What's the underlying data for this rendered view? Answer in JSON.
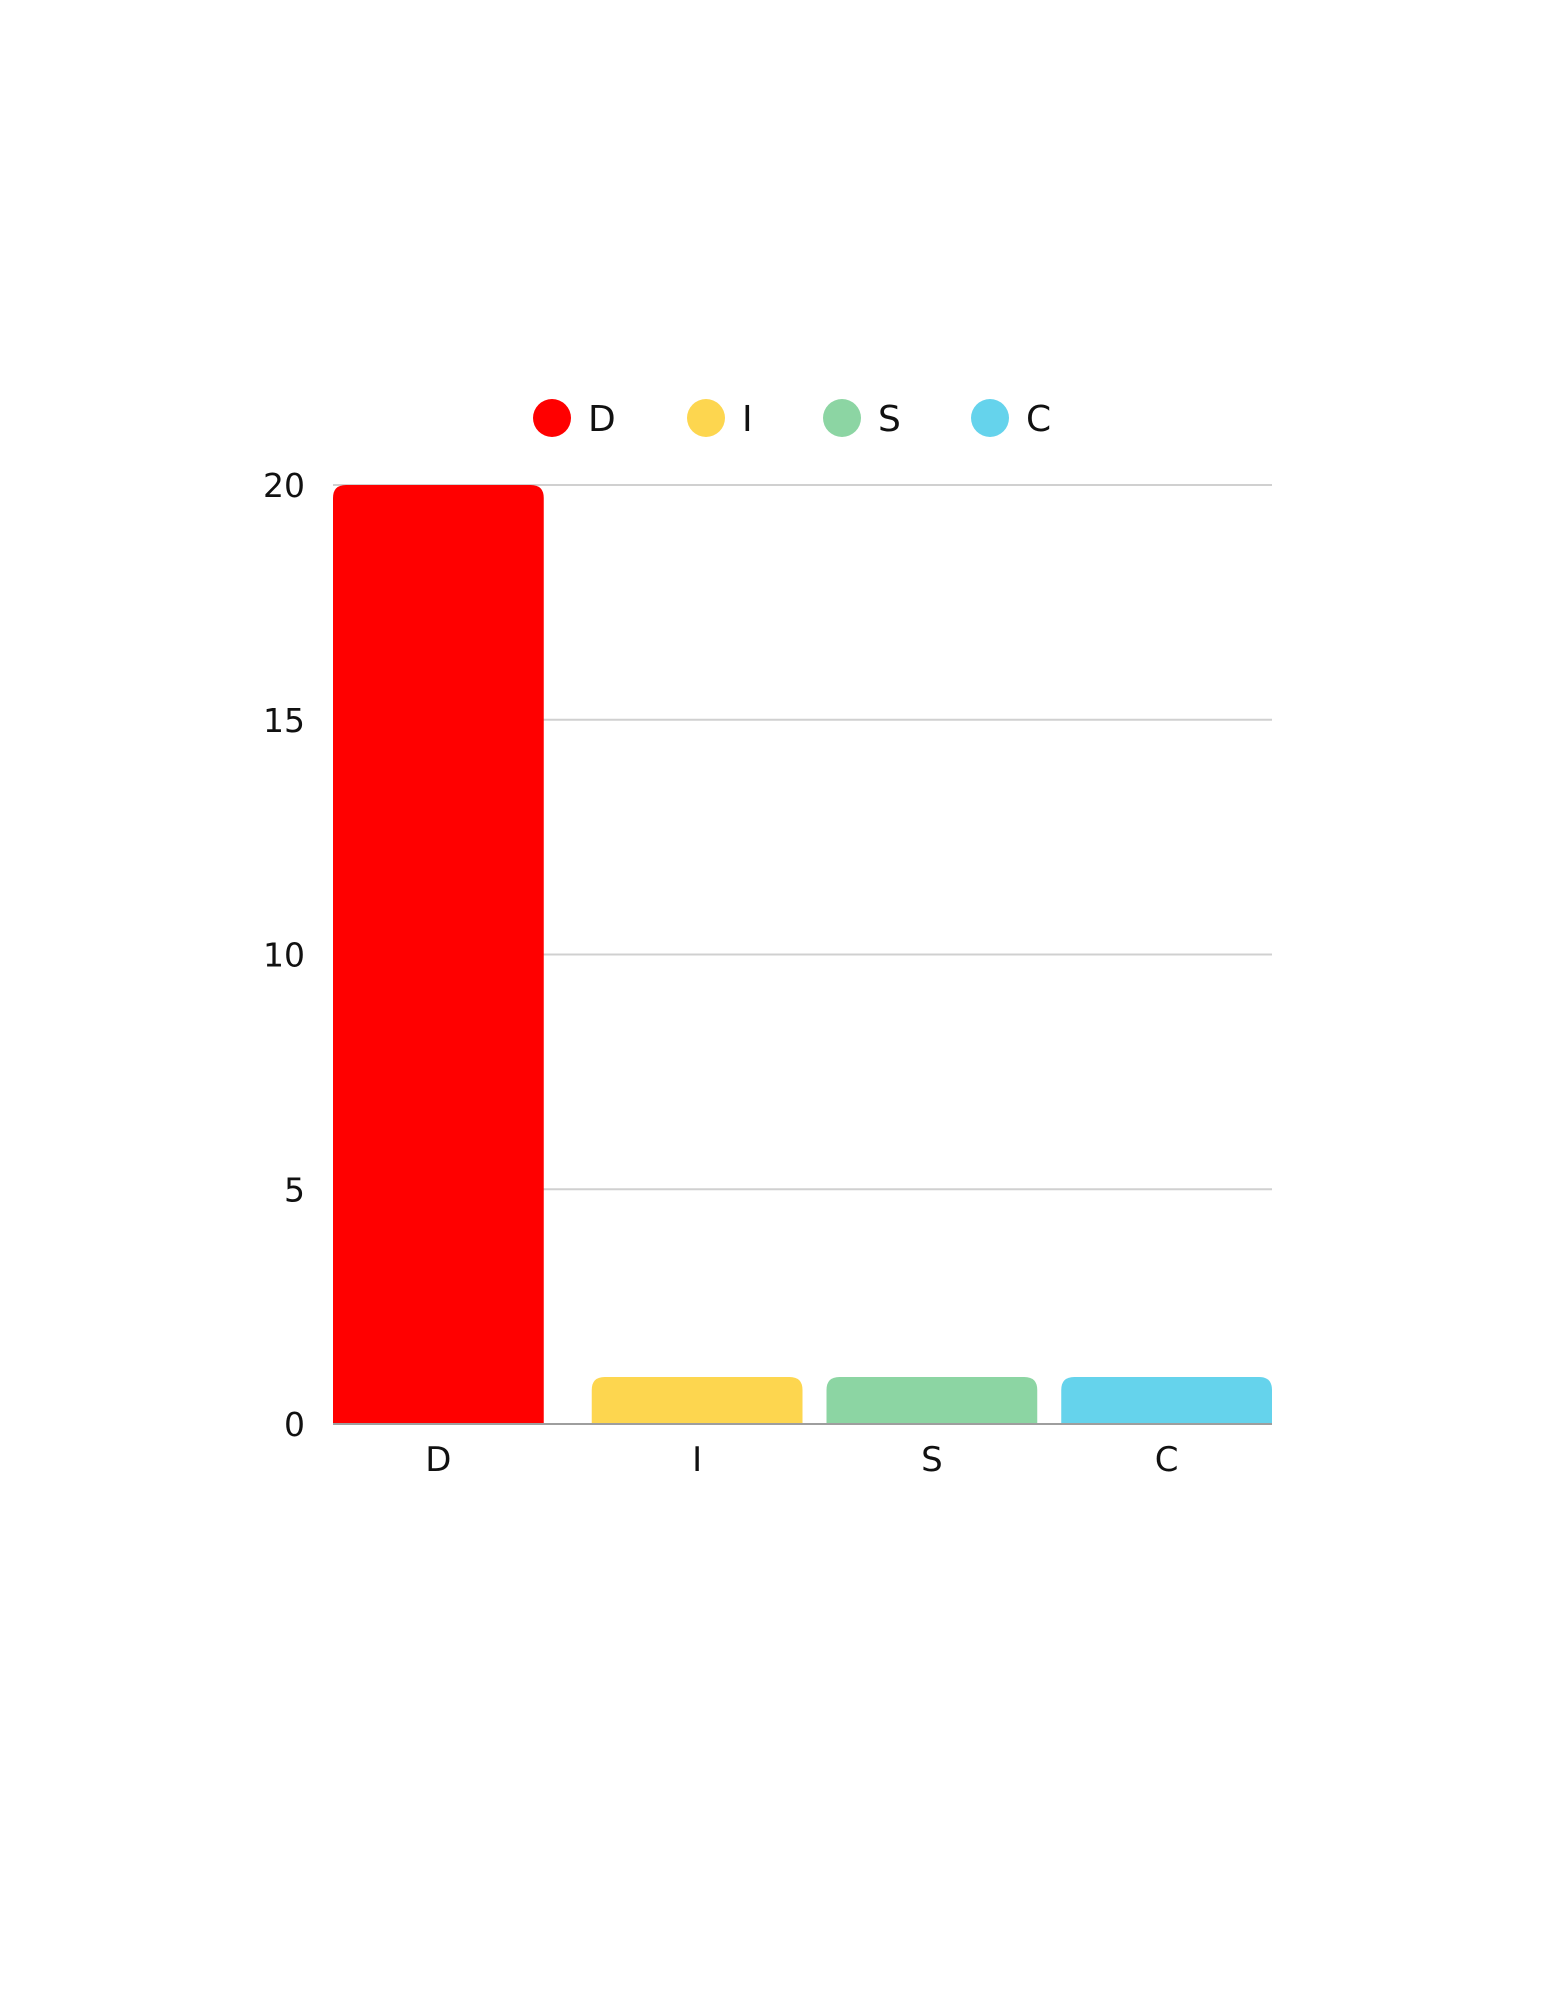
{
  "chart_data": {
    "type": "bar",
    "categories": [
      "D",
      "I",
      "S",
      "C"
    ],
    "values": [
      20,
      1,
      1,
      1
    ],
    "colors": [
      "#ff0000",
      "#fdd64f",
      "#8cd5a3",
      "#65d3ec"
    ],
    "legend": {
      "position": "top-center",
      "entries": [
        "D",
        "I",
        "S",
        "C"
      ]
    },
    "y_ticks": [
      "0",
      "5",
      "10",
      "15",
      "20"
    ],
    "ylim": [
      0,
      20
    ],
    "grid": true,
    "title": "",
    "xlabel": "",
    "ylabel": ""
  }
}
